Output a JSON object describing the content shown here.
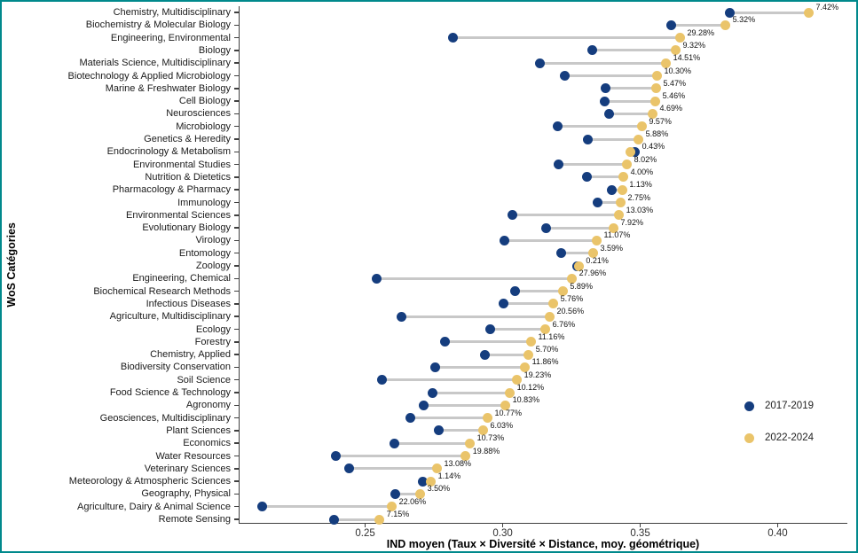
{
  "frame": {
    "border_color": "#00898c",
    "background": "#ffffff"
  },
  "colors": {
    "series_2017": "#153d7e",
    "series_2022": "#eac46a",
    "segment": "#c8c8c8",
    "axis_line": "#3f3f3f",
    "tick_label": "#303030",
    "category_label": "#1a1a1a",
    "pct_label": "#111111"
  },
  "chart_data": {
    "type": "scatter",
    "subtype": "dumbbell",
    "title": "",
    "xlabel": "IND moyen (Taux × Diversité × Distance, moy. géométrique)",
    "ylabel": "WoS Catégories",
    "xlim": [
      0.204,
      0.425
    ],
    "x_ticks": [
      0.25,
      0.3,
      0.35,
      0.4
    ],
    "x_tick_labels": [
      "0.25",
      "0.30",
      "0.35",
      "0.40"
    ],
    "grid": false,
    "legend_position": "right-inside",
    "legend": [
      {
        "label": "2017-2019",
        "color": "#153d7e"
      },
      {
        "label": "2022-2024",
        "color": "#eac46a"
      }
    ],
    "rows": [
      {
        "category": "Chemistry, Multidisciplinary",
        "v2017": 0.3826,
        "v2022": 0.4113,
        "pct": "7.42%"
      },
      {
        "category": "Biochemistry & Molecular Biology",
        "v2017": 0.3613,
        "v2022": 0.381,
        "pct": "5.32%"
      },
      {
        "category": "Engineering, Environmental",
        "v2017": 0.2819,
        "v2022": 0.3645,
        "pct": "29.28%"
      },
      {
        "category": "Biology",
        "v2017": 0.3326,
        "v2022": 0.3629,
        "pct": "9.32%"
      },
      {
        "category": "Materials Science, Multidisciplinary",
        "v2017": 0.3135,
        "v2022": 0.3594,
        "pct": "14.51%"
      },
      {
        "category": "Biotechnology & Applied Microbiology",
        "v2017": 0.3226,
        "v2022": 0.3561,
        "pct": "10.30%"
      },
      {
        "category": "Marine & Freshwater Biology",
        "v2017": 0.3374,
        "v2022": 0.3558,
        "pct": "5.47%"
      },
      {
        "category": "Cell Biology",
        "v2017": 0.3371,
        "v2022": 0.3555,
        "pct": "5.46%"
      },
      {
        "category": "Neurosciences",
        "v2017": 0.3387,
        "v2022": 0.3545,
        "pct": "4.69%"
      },
      {
        "category": "Microbiology",
        "v2017": 0.32,
        "v2022": 0.3506,
        "pct": "9.57%"
      },
      {
        "category": "Genetics & Heredity",
        "v2017": 0.331,
        "v2022": 0.3494,
        "pct": "5.88%"
      },
      {
        "category": "Endocrinology & Metabolism",
        "v2017": 0.3481,
        "v2022": 0.3466,
        "pct": "0.43%"
      },
      {
        "category": "Environmental Studies",
        "v2017": 0.3203,
        "v2022": 0.3452,
        "pct": "8.02%"
      },
      {
        "category": "Nutrition & Dietetics",
        "v2017": 0.3306,
        "v2022": 0.3439,
        "pct": "4.00%"
      },
      {
        "category": "Pharmacology & Pharmacy",
        "v2017": 0.3397,
        "v2022": 0.3435,
        "pct": "1.13%"
      },
      {
        "category": "Immunology",
        "v2017": 0.3345,
        "v2022": 0.3429,
        "pct": "2.75%"
      },
      {
        "category": "Environmental Sciences",
        "v2017": 0.3035,
        "v2022": 0.3423,
        "pct": "13.03%"
      },
      {
        "category": "Evolutionary Biology",
        "v2017": 0.3158,
        "v2022": 0.3403,
        "pct": "7.92%"
      },
      {
        "category": "Virology",
        "v2017": 0.3006,
        "v2022": 0.3342,
        "pct": "11.07%"
      },
      {
        "category": "Entomology",
        "v2017": 0.3213,
        "v2022": 0.3329,
        "pct": "3.59%"
      },
      {
        "category": "Zoology",
        "v2017": 0.3271,
        "v2022": 0.3277,
        "pct": "0.21%"
      },
      {
        "category": "Engineering, Chemical",
        "v2017": 0.2542,
        "v2022": 0.3252,
        "pct": "27.96%"
      },
      {
        "category": "Biochemical Research Methods",
        "v2017": 0.3045,
        "v2022": 0.3219,
        "pct": "5.89%"
      },
      {
        "category": "Infectious Diseases",
        "v2017": 0.3003,
        "v2022": 0.3184,
        "pct": "5.76%"
      },
      {
        "category": "Agriculture, Multidisciplinary",
        "v2017": 0.2632,
        "v2022": 0.3171,
        "pct": "20.56%"
      },
      {
        "category": "Ecology",
        "v2017": 0.2955,
        "v2022": 0.3155,
        "pct": "6.76%"
      },
      {
        "category": "Forestry",
        "v2017": 0.279,
        "v2022": 0.3103,
        "pct": "11.16%"
      },
      {
        "category": "Chemistry, Applied",
        "v2017": 0.2935,
        "v2022": 0.3094,
        "pct": "5.70%"
      },
      {
        "category": "Biodiversity Conservation",
        "v2017": 0.2755,
        "v2022": 0.3081,
        "pct": "11.86%"
      },
      {
        "category": "Soil Science",
        "v2017": 0.256,
        "v2022": 0.3052,
        "pct": "19.23%"
      },
      {
        "category": "Food Science & Technology",
        "v2017": 0.2745,
        "v2022": 0.3026,
        "pct": "10.12%"
      },
      {
        "category": "Agronomy",
        "v2017": 0.2713,
        "v2022": 0.301,
        "pct": "10.83%"
      },
      {
        "category": "Geosciences, Multidisciplinary",
        "v2017": 0.2665,
        "v2022": 0.2945,
        "pct": "10.77%"
      },
      {
        "category": "Plant Sciences",
        "v2017": 0.2768,
        "v2022": 0.2929,
        "pct": "6.03%"
      },
      {
        "category": "Economics",
        "v2017": 0.2606,
        "v2022": 0.2881,
        "pct": "10.73%"
      },
      {
        "category": "Water Resources",
        "v2017": 0.2394,
        "v2022": 0.2865,
        "pct": "19.88%"
      },
      {
        "category": "Veterinary Sciences",
        "v2017": 0.2442,
        "v2022": 0.2761,
        "pct": "13.08%"
      },
      {
        "category": "Meteorology & Atmospheric Sciences",
        "v2017": 0.271,
        "v2022": 0.2739,
        "pct": "1.14%"
      },
      {
        "category": "Geography, Physical",
        "v2017": 0.261,
        "v2022": 0.27,
        "pct": "3.50%"
      },
      {
        "category": "Agriculture, Dairy & Animal Science",
        "v2017": 0.2126,
        "v2022": 0.2597,
        "pct": "22.06%"
      },
      {
        "category": "Remote Sensing",
        "v2017": 0.2387,
        "v2022": 0.2552,
        "pct": "7.15%"
      }
    ]
  }
}
